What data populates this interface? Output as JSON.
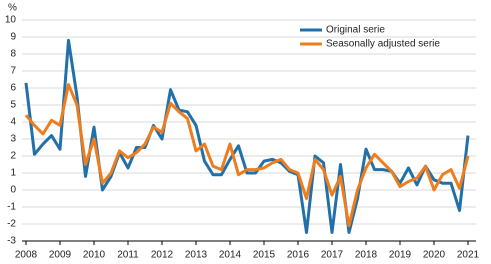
{
  "chart_data": {
    "type": "line",
    "y_label": "%",
    "categories": [
      "2008",
      null,
      null,
      null,
      "2009",
      null,
      null,
      null,
      "2010",
      null,
      null,
      null,
      "2011",
      null,
      null,
      null,
      "2012",
      null,
      null,
      null,
      "2013",
      null,
      null,
      null,
      "2014",
      null,
      null,
      null,
      "2015",
      null,
      null,
      null,
      "2016",
      null,
      null,
      null,
      "2017",
      null,
      null,
      null,
      "2018",
      null,
      null,
      null,
      "2019",
      null,
      null,
      null,
      "2020",
      null,
      null,
      null,
      "2021"
    ],
    "series": [
      {
        "name": "Original serie",
        "color": "#2270a9",
        "values": [
          6.3,
          2.1,
          2.7,
          3.2,
          2.4,
          8.8,
          5.5,
          0.8,
          3.7,
          0.0,
          0.8,
          2.2,
          1.3,
          2.5,
          2.5,
          3.8,
          3.0,
          5.9,
          4.7,
          4.6,
          3.8,
          1.7,
          0.9,
          0.9,
          1.8,
          2.6,
          1.0,
          1.0,
          1.7,
          1.8,
          1.6,
          1.1,
          0.9,
          -2.5,
          2.0,
          1.6,
          -2.5,
          1.5,
          -2.5,
          -0.5,
          2.4,
          1.2,
          1.2,
          1.1,
          0.4,
          1.3,
          0.3,
          1.4,
          0.6,
          0.4,
          0.4,
          -1.2,
          3.2
        ]
      },
      {
        "name": "Seasonally adjusted serie",
        "color": "#ef7d1e",
        "values": [
          4.4,
          3.8,
          3.3,
          4.1,
          3.8,
          6.2,
          5.0,
          1.5,
          3.0,
          0.4,
          1.0,
          2.3,
          1.9,
          2.2,
          2.7,
          3.7,
          3.4,
          5.1,
          4.6,
          4.2,
          2.3,
          2.7,
          1.4,
          1.2,
          2.7,
          0.9,
          1.2,
          1.2,
          1.3,
          1.6,
          1.8,
          1.2,
          1.0,
          -0.5,
          1.8,
          1.2,
          -0.3,
          0.8,
          -2.1,
          0.0,
          1.3,
          2.1,
          1.6,
          1.1,
          0.2,
          0.5,
          0.7,
          1.4,
          0.0,
          0.9,
          1.2,
          0.1,
          2.0
        ]
      }
    ],
    "ylim": [
      -3,
      10
    ],
    "yticks": [
      -3,
      -2,
      -1,
      0,
      1,
      2,
      3,
      4,
      5,
      6,
      7,
      8,
      9,
      10
    ],
    "grid": true,
    "legend": "upper right"
  }
}
